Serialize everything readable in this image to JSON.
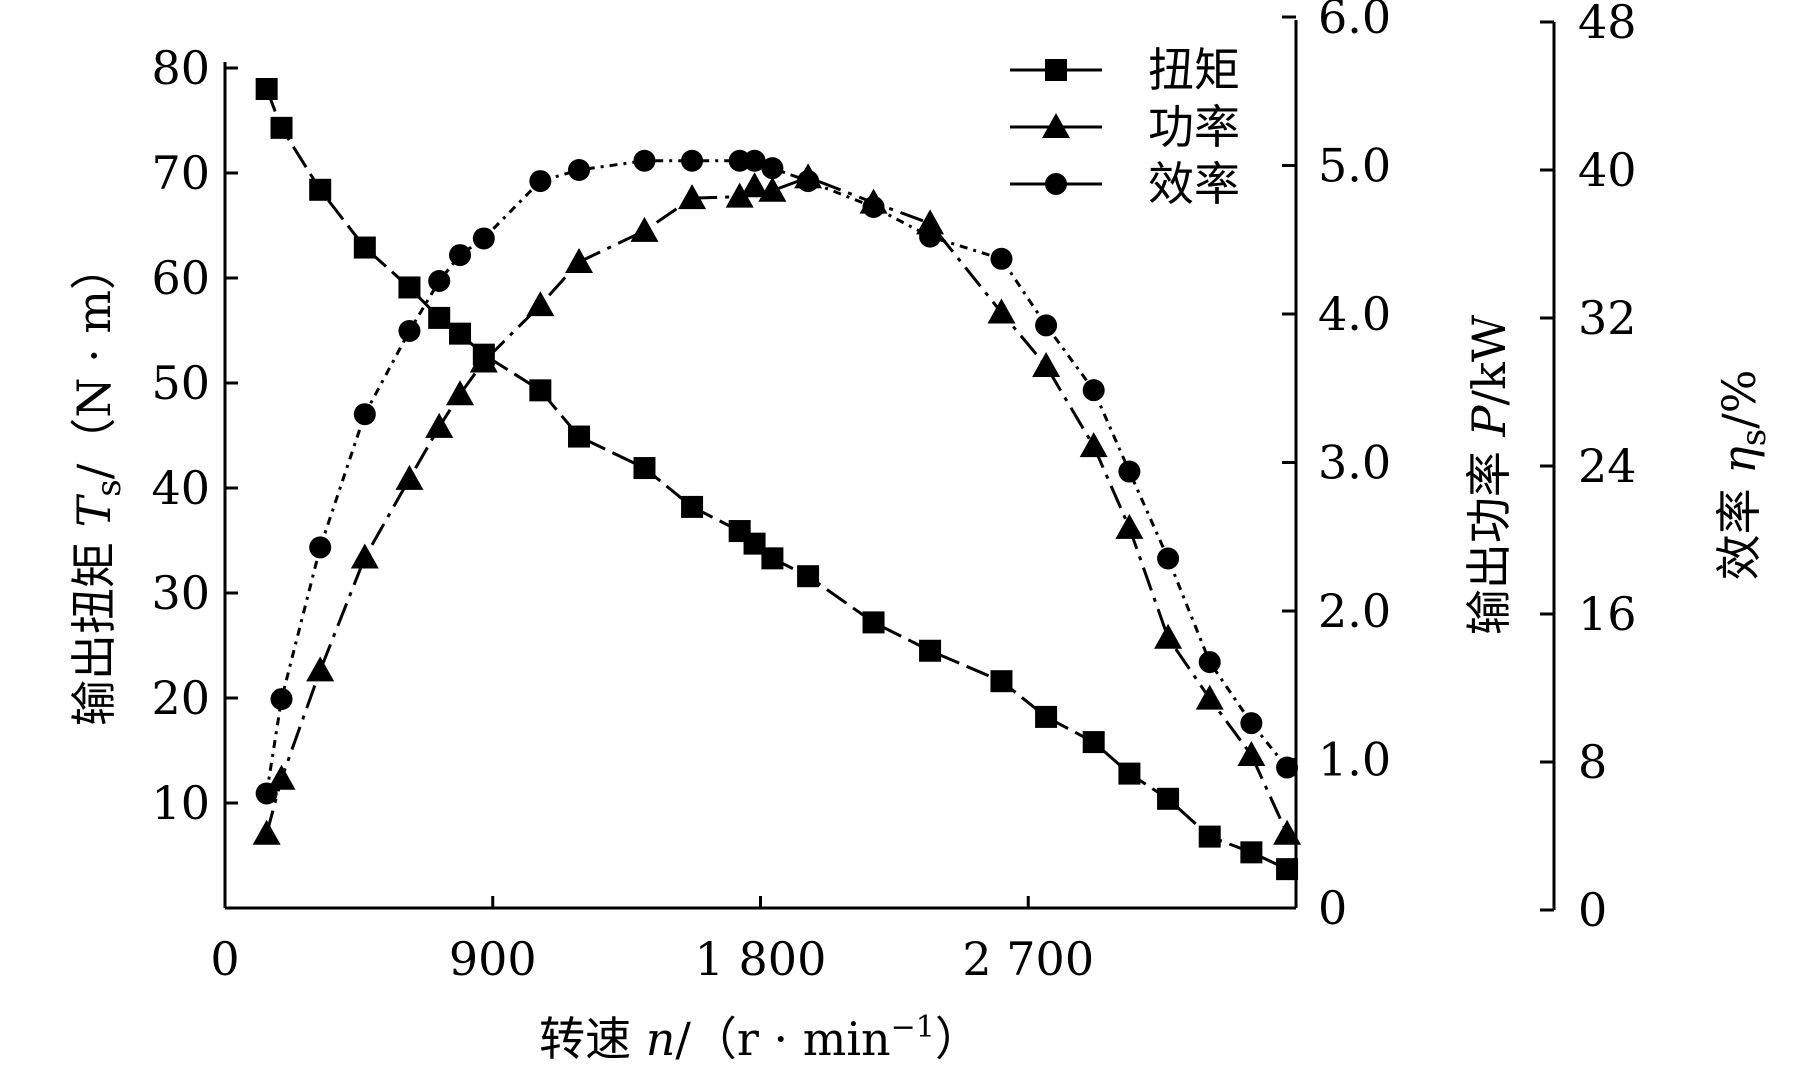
{
  "chart_data": {
    "type": "line",
    "x": [
      140,
      190,
      320,
      470,
      620,
      720,
      790,
      870,
      1060,
      1190,
      1410,
      1570,
      1730,
      1780,
      1840,
      1960,
      2180,
      2370,
      2610,
      2760,
      2920,
      3040,
      3170,
      3310,
      3450,
      3570
    ],
    "x_axis": {
      "ticks": [
        0,
        900,
        1800,
        2700
      ],
      "tick_labels": [
        "0",
        "900",
        "1 800",
        "2 700"
      ],
      "label": {
        "prefix": "转速 ",
        "symbol": "n",
        "suffix": "/（r · min",
        "sup": "−1",
        "close": "）"
      }
    },
    "y_left": {
      "range": [
        0,
        80
      ],
      "ticks": [
        10,
        20,
        30,
        40,
        50,
        60,
        70,
        80
      ],
      "tick_labels": [
        "10",
        "20",
        "30",
        "40",
        "50",
        "60",
        "70",
        "80"
      ],
      "label": {
        "prefix": "输出扭矩 ",
        "symbol": "T",
        "sub": "s",
        "suffix": "/（N · m）"
      }
    },
    "y_right1": {
      "range": [
        0,
        6
      ],
      "ticks": [
        0,
        1,
        2,
        3,
        4,
        5,
        6
      ],
      "tick_labels": [
        "0",
        "1.0",
        "2.0",
        "3.0",
        "4.0",
        "5.0",
        "6.0"
      ],
      "label": {
        "prefix": "输出功率 ",
        "symbol": "P",
        "suffix": "/kW"
      }
    },
    "y_right2": {
      "range": [
        0,
        48
      ],
      "ticks": [
        0,
        8,
        16,
        24,
        32,
        40,
        48
      ],
      "tick_labels": [
        "0",
        "8",
        "16",
        "24",
        "32",
        "40",
        "48"
      ],
      "label": {
        "prefix": "效率 ",
        "symbol": "η",
        "sub": "s",
        "suffix": "/%"
      }
    },
    "legend_position": "top-right",
    "series": [
      {
        "name": "扭矩",
        "marker": "square",
        "axis": "y_left",
        "values": [
          78,
          74.3,
          68.4,
          62.9,
          59.1,
          56.2,
          54.7,
          52.7,
          49.3,
          44.9,
          41.9,
          38.2,
          35.9,
          34.7,
          33.3,
          31.6,
          27.2,
          24.5,
          21.6,
          18.2,
          15.8,
          12.8,
          10.4,
          6.8,
          5.3,
          3.7
        ]
      },
      {
        "name": "功率",
        "marker": "triangle",
        "axis": "y_right1",
        "values": [
          0.5,
          0.87,
          1.6,
          2.36,
          2.89,
          3.24,
          3.46,
          3.68,
          4.06,
          4.35,
          4.56,
          4.78,
          4.79,
          4.86,
          4.83,
          4.92,
          4.75,
          4.61,
          4.01,
          3.65,
          3.11,
          2.56,
          1.82,
          1.41,
          1.03,
          0.5
        ]
      },
      {
        "name": "效率",
        "marker": "circle",
        "axis": "y_right2",
        "values": [
          6.3,
          11.4,
          19.6,
          26.8,
          31.3,
          34.0,
          35.4,
          36.3,
          39.4,
          40.0,
          40.5,
          40.5,
          40.5,
          40.5,
          40.1,
          39.4,
          38.0,
          36.4,
          35.2,
          31.6,
          28.1,
          23.7,
          19.0,
          13.4,
          10.1,
          7.7
        ]
      }
    ]
  }
}
